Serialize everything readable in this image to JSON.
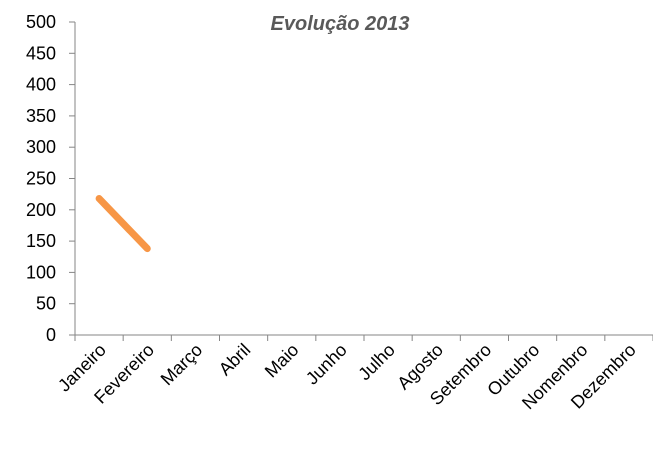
{
  "chart_data": {
    "type": "line",
    "title": "Evolução 2013",
    "xlabel": "",
    "ylabel": "",
    "categories": [
      "Janeiro",
      "Fevereiro",
      "Março",
      "Abril",
      "Maio",
      "Junho",
      "Julho",
      "Agosto",
      "Setembro",
      "Outubro",
      "Nomenbro",
      "Dezembro"
    ],
    "series": [
      {
        "color": "#F79646",
        "values": [
          218,
          138,
          null,
          null,
          null,
          null,
          null,
          null,
          null,
          null,
          null,
          null
        ]
      }
    ],
    "yticks": [
      "0",
      "50",
      "100",
      "150",
      "200",
      "250",
      "300",
      "350",
      "400",
      "450",
      "500"
    ],
    "ylim": [
      0,
      500
    ],
    "grid": false,
    "legend": "none",
    "colors": {
      "title": "#595959",
      "axis": "#868686",
      "text": "#000000"
    }
  }
}
